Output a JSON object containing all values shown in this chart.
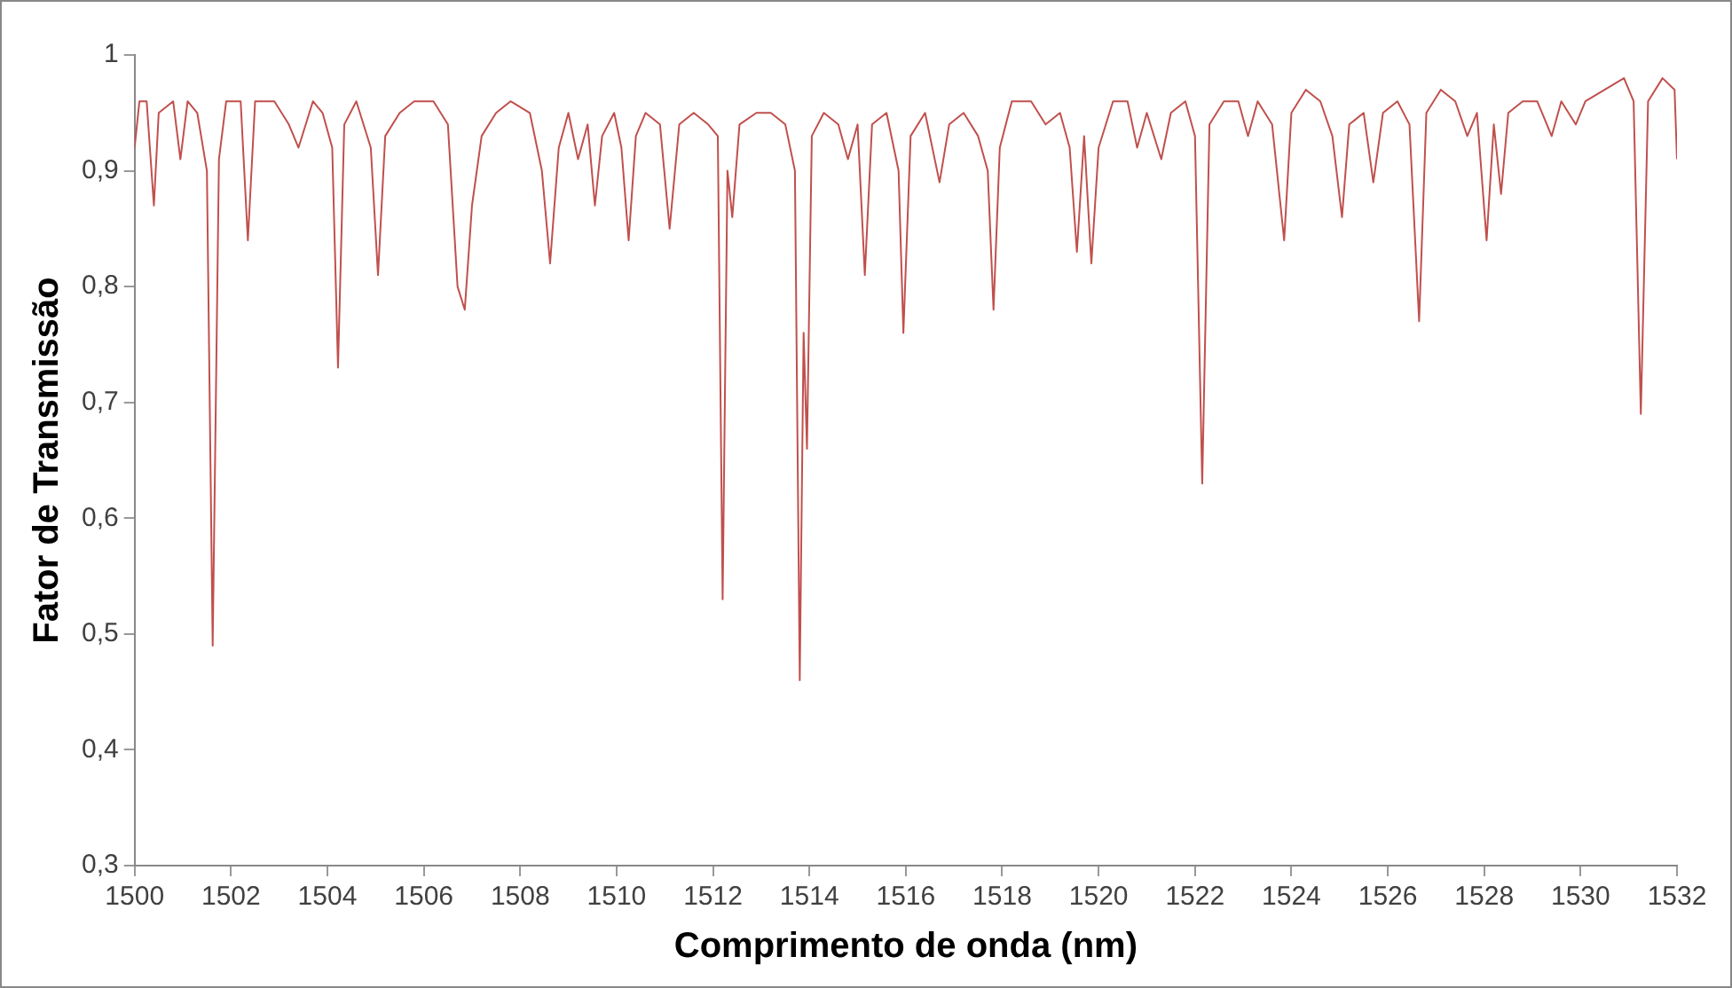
{
  "chart_data": {
    "type": "line",
    "xlabel": "Comprimento de onda (nm)",
    "ylabel": "Fator de Transmissão",
    "xlim": [
      1500,
      1532
    ],
    "ylim": [
      0.3,
      1
    ],
    "xticks": [
      1500,
      1502,
      1504,
      1506,
      1508,
      1510,
      1512,
      1514,
      1516,
      1518,
      1520,
      1522,
      1524,
      1526,
      1528,
      1530,
      1532
    ],
    "yticks": [
      {
        "value": 0.3,
        "label": "0,3"
      },
      {
        "value": 0.4,
        "label": "0,4"
      },
      {
        "value": 0.5,
        "label": "0,5"
      },
      {
        "value": 0.6,
        "label": "0,6"
      },
      {
        "value": 0.7,
        "label": "0,7"
      },
      {
        "value": 0.8,
        "label": "0,8"
      },
      {
        "value": 0.9,
        "label": "0,9"
      },
      {
        "value": 1,
        "label": "1"
      }
    ],
    "grid": false,
    "legend": false,
    "marker": "none",
    "line_style": "solid",
    "series": [
      {
        "color": "#c0504d",
        "x": [
          1500.0,
          1500.1,
          1500.25,
          1500.4,
          1500.5,
          1500.8,
          1500.95,
          1501.1,
          1501.3,
          1501.5,
          1501.62,
          1501.75,
          1501.9,
          1502.2,
          1502.35,
          1502.5,
          1502.9,
          1503.2,
          1503.4,
          1503.7,
          1503.9,
          1504.1,
          1504.22,
          1504.35,
          1504.6,
          1504.9,
          1505.05,
          1505.2,
          1505.5,
          1505.8,
          1506.2,
          1506.5,
          1506.7,
          1506.85,
          1507.0,
          1507.2,
          1507.5,
          1507.8,
          1508.2,
          1508.45,
          1508.62,
          1508.8,
          1509.0,
          1509.2,
          1509.4,
          1509.55,
          1509.7,
          1509.95,
          1510.1,
          1510.25,
          1510.4,
          1510.6,
          1510.9,
          1511.1,
          1511.3,
          1511.6,
          1511.9,
          1512.1,
          1512.2,
          1512.3,
          1512.4,
          1512.55,
          1512.9,
          1513.2,
          1513.5,
          1513.7,
          1513.8,
          1513.88,
          1513.95,
          1514.05,
          1514.3,
          1514.6,
          1514.8,
          1515.0,
          1515.15,
          1515.3,
          1515.6,
          1515.85,
          1515.95,
          1516.1,
          1516.4,
          1516.7,
          1516.9,
          1517.2,
          1517.5,
          1517.7,
          1517.82,
          1517.95,
          1518.2,
          1518.6,
          1518.9,
          1519.2,
          1519.4,
          1519.55,
          1519.7,
          1519.85,
          1520.0,
          1520.3,
          1520.6,
          1520.8,
          1521.0,
          1521.3,
          1521.5,
          1521.8,
          1522.0,
          1522.15,
          1522.3,
          1522.6,
          1522.9,
          1523.1,
          1523.3,
          1523.6,
          1523.85,
          1524.0,
          1524.3,
          1524.6,
          1524.85,
          1525.05,
          1525.2,
          1525.5,
          1525.7,
          1525.9,
          1526.2,
          1526.45,
          1526.65,
          1526.8,
          1527.1,
          1527.4,
          1527.65,
          1527.85,
          1528.05,
          1528.2,
          1528.35,
          1528.5,
          1528.8,
          1529.1,
          1529.4,
          1529.6,
          1529.9,
          1530.1,
          1530.5,
          1530.9,
          1531.1,
          1531.25,
          1531.4,
          1531.7,
          1531.95,
          1532.0
        ],
        "values": [
          0.92,
          0.96,
          0.96,
          0.87,
          0.95,
          0.96,
          0.91,
          0.96,
          0.95,
          0.9,
          0.49,
          0.91,
          0.96,
          0.96,
          0.84,
          0.96,
          0.96,
          0.94,
          0.92,
          0.96,
          0.95,
          0.92,
          0.73,
          0.94,
          0.96,
          0.92,
          0.81,
          0.93,
          0.95,
          0.96,
          0.96,
          0.94,
          0.8,
          0.78,
          0.87,
          0.93,
          0.95,
          0.96,
          0.95,
          0.9,
          0.82,
          0.92,
          0.95,
          0.91,
          0.94,
          0.87,
          0.93,
          0.95,
          0.92,
          0.84,
          0.93,
          0.95,
          0.94,
          0.85,
          0.94,
          0.95,
          0.94,
          0.93,
          0.53,
          0.9,
          0.86,
          0.94,
          0.95,
          0.95,
          0.94,
          0.9,
          0.46,
          0.76,
          0.66,
          0.93,
          0.95,
          0.94,
          0.91,
          0.94,
          0.81,
          0.94,
          0.95,
          0.9,
          0.76,
          0.93,
          0.95,
          0.89,
          0.94,
          0.95,
          0.93,
          0.9,
          0.78,
          0.92,
          0.96,
          0.96,
          0.94,
          0.95,
          0.92,
          0.83,
          0.93,
          0.82,
          0.92,
          0.96,
          0.96,
          0.92,
          0.95,
          0.91,
          0.95,
          0.96,
          0.93,
          0.63,
          0.94,
          0.96,
          0.96,
          0.93,
          0.96,
          0.94,
          0.84,
          0.95,
          0.97,
          0.96,
          0.93,
          0.86,
          0.94,
          0.95,
          0.89,
          0.95,
          0.96,
          0.94,
          0.77,
          0.95,
          0.97,
          0.96,
          0.93,
          0.95,
          0.84,
          0.94,
          0.88,
          0.95,
          0.96,
          0.96,
          0.93,
          0.96,
          0.94,
          0.96,
          0.97,
          0.98,
          0.96,
          0.69,
          0.96,
          0.98,
          0.97,
          0.91
        ]
      }
    ]
  }
}
